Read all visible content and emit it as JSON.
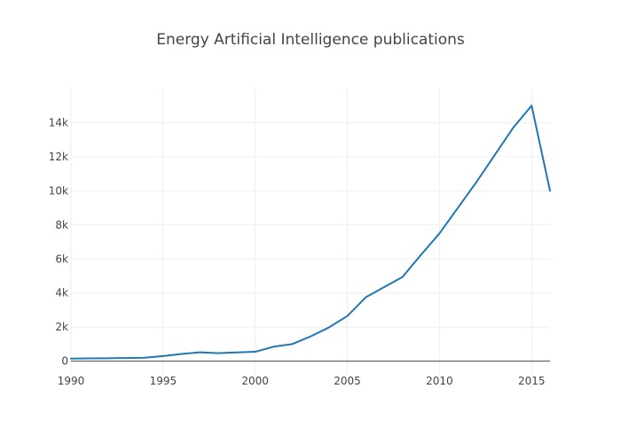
{
  "chart_data": {
    "type": "line",
    "title": "Energy Artificial Intelligence publications",
    "xlabel": "",
    "ylabel": "",
    "xlim": [
      1990,
      2016
    ],
    "ylim": [
      -800,
      16000
    ],
    "x_ticks": [
      1990,
      1995,
      2000,
      2005,
      2010,
      2015
    ],
    "x_tick_labels": [
      "1990",
      "1995",
      "2000",
      "2005",
      "2010",
      "2015"
    ],
    "y_ticks": [
      0,
      2000,
      4000,
      6000,
      8000,
      10000,
      12000,
      14000
    ],
    "y_tick_labels": [
      "0",
      "2k",
      "4k",
      "6k",
      "8k",
      "10k",
      "12k",
      "14k"
    ],
    "grid": true,
    "legend": "none",
    "series": [
      {
        "name": "publications",
        "color": "#1f77b4",
        "x": [
          1990,
          1991,
          1992,
          1993,
          1994,
          1995,
          1996,
          1997,
          1998,
          1999,
          2000,
          2001,
          2002,
          2003,
          2004,
          2005,
          2006,
          2007,
          2008,
          2009,
          2010,
          2011,
          2012,
          2013,
          2014,
          2015,
          2016
        ],
        "y": [
          150,
          160,
          170,
          180,
          200,
          300,
          420,
          520,
          470,
          510,
          550,
          850,
          1000,
          1450,
          1980,
          2650,
          3750,
          4350,
          4950,
          6250,
          7500,
          9000,
          10500,
          12100,
          13700,
          15000,
          10000
        ]
      }
    ]
  }
}
